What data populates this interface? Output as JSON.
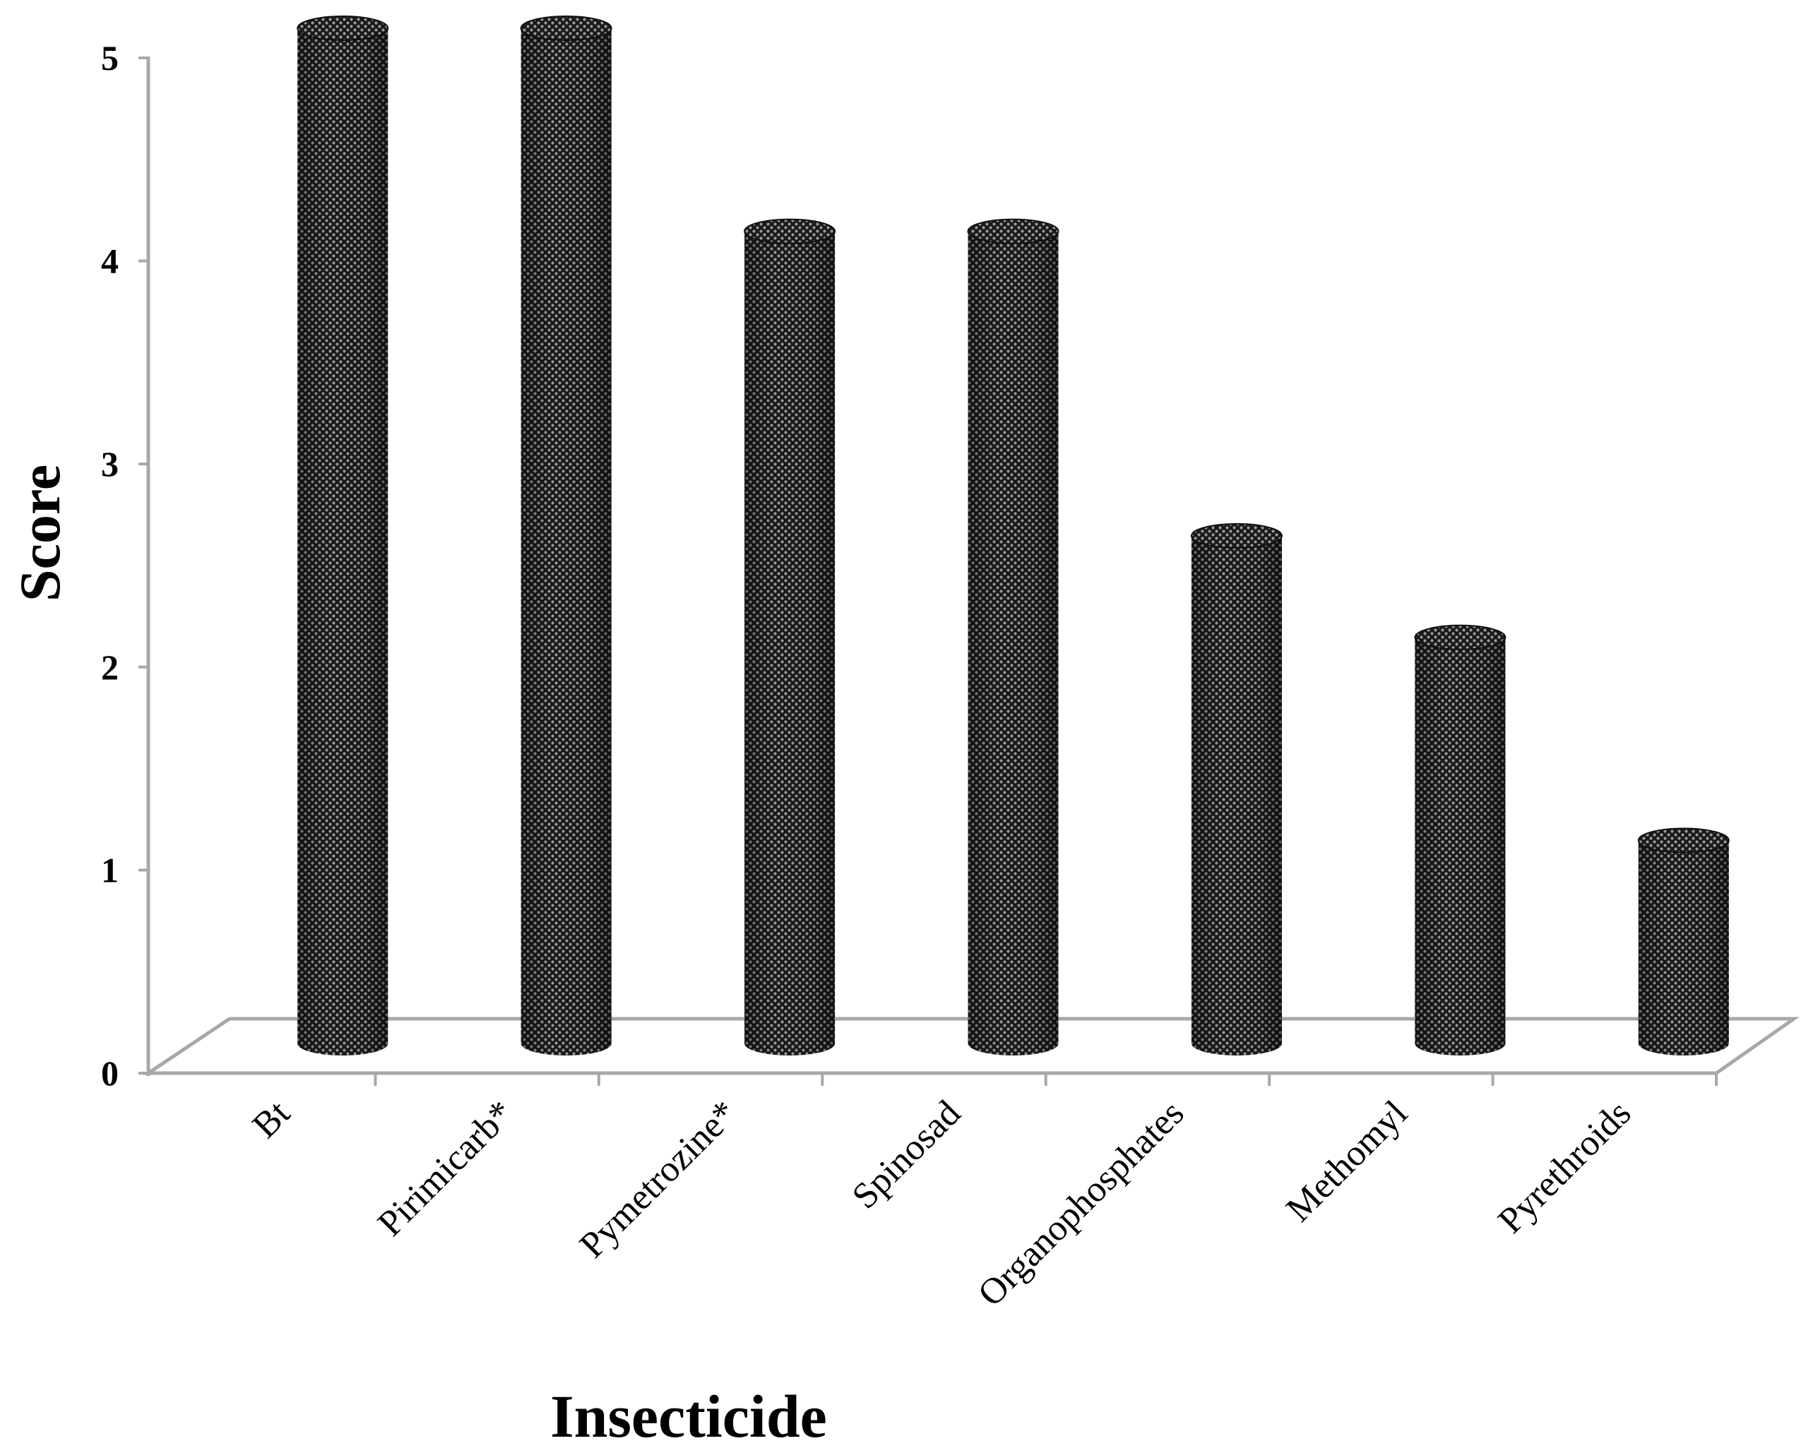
{
  "chart_data": {
    "type": "bar",
    "title": "",
    "xlabel": "Insecticide",
    "ylabel": "Score",
    "categories": [
      "Bt",
      "Pirimicarb*",
      "Pymetrozine*",
      "Spinosad",
      "Organophosphates",
      "Methomyl",
      "Pyrethroids"
    ],
    "values": [
      5,
      5,
      4,
      4,
      2.5,
      2,
      1
    ],
    "ylim": [
      0,
      5
    ],
    "yticks": [
      "0",
      "1",
      "2",
      "3",
      "4",
      "5"
    ],
    "grid": false,
    "legend": "none",
    "bar_style": "3D cylinder, dotted dark-gray texture",
    "colors": {
      "bar_dark": "#1a1a1a",
      "bar_light": "#8a8a8a",
      "axis": "#a8a8a8",
      "text": "#000000"
    }
  }
}
